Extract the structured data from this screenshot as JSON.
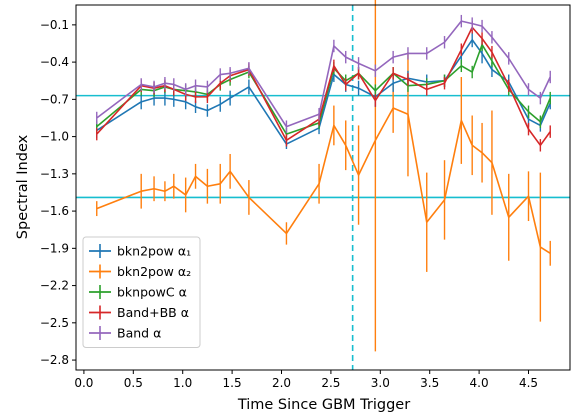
{
  "chart_data": {
    "type": "line",
    "xlabel": "Time Since GBM Trigger",
    "ylabel": "Spectral Index",
    "xlim": [
      -0.08,
      4.92
    ],
    "ylim": [
      -2.88,
      0.06
    ],
    "xticks": [
      0.0,
      0.5,
      1.0,
      1.5,
      2.0,
      2.5,
      3.0,
      3.5,
      4.0,
      4.5
    ],
    "xtick_labels": [
      "0.0",
      "0.5",
      "1.0",
      "1.5",
      "2.0",
      "2.5",
      "3.0",
      "3.5",
      "4.0",
      "4.5"
    ],
    "yticks": [
      -0.1,
      -0.4,
      -0.7,
      -1.0,
      -1.3,
      -1.6,
      -1.9,
      -2.2,
      -2.5,
      -2.8
    ],
    "ytick_labels": [
      "−0.1",
      "−0.4",
      "−0.7",
      "−1.0",
      "−1.3",
      "−1.6",
      "−1.9",
      "−2.2",
      "−2.5",
      "−2.8"
    ],
    "grid": false,
    "legend_position": "lower-left",
    "hlines": [
      {
        "y": -0.67,
        "color": "#17becf"
      },
      {
        "y": -1.49,
        "color": "#17becf"
      }
    ],
    "vlines": [
      {
        "x": 2.72,
        "color": "#17becf",
        "style": "dashed"
      }
    ],
    "x": [
      0.13,
      0.58,
      0.71,
      0.82,
      0.91,
      1.03,
      1.13,
      1.25,
      1.38,
      1.48,
      1.67,
      2.05,
      2.38,
      2.53,
      2.65,
      2.78,
      2.95,
      3.13,
      3.28,
      3.47,
      3.65,
      3.82,
      3.93,
      4.03,
      4.13,
      4.3,
      4.5,
      4.62,
      4.72
    ],
    "series": [
      {
        "name": "bkn2pow α₁",
        "color": "#1f77b4",
        "values": [
          -0.95,
          -0.72,
          -0.69,
          -0.69,
          -0.7,
          -0.72,
          -0.76,
          -0.79,
          -0.74,
          -0.69,
          -0.6,
          -1.06,
          -0.93,
          -0.5,
          -0.58,
          -0.61,
          -0.68,
          -0.57,
          -0.53,
          -0.56,
          -0.55,
          -0.35,
          -0.22,
          -0.33,
          -0.46,
          -0.56,
          -0.86,
          -0.91,
          -0.73
        ],
        "errors": [
          0.06,
          0.06,
          0.06,
          0.06,
          0.06,
          0.06,
          0.05,
          0.05,
          0.06,
          0.06,
          0.06,
          0.04,
          0.05,
          0.06,
          0.06,
          0.06,
          0.08,
          0.07,
          0.06,
          0.06,
          0.05,
          0.07,
          0.06,
          0.08,
          0.06,
          0.06,
          0.06,
          0.05,
          0.05
        ]
      },
      {
        "name": "bkn2pow α₂",
        "color": "#ff7f0e",
        "values": [
          -1.58,
          -1.44,
          -1.42,
          -1.44,
          -1.4,
          -1.47,
          -1.32,
          -1.4,
          -1.38,
          -1.28,
          -1.49,
          -1.78,
          -1.38,
          -0.91,
          -1.07,
          -1.31,
          -1.03,
          -0.77,
          -0.82,
          -1.69,
          -1.51,
          -0.87,
          -1.07,
          -1.13,
          -1.21,
          -1.65,
          -1.48,
          -1.89,
          -1.94
        ],
        "errors": [
          0.06,
          0.14,
          0.1,
          0.08,
          0.1,
          0.14,
          0.1,
          0.14,
          0.16,
          0.14,
          0.14,
          0.09,
          0.16,
          0.16,
          0.2,
          0.4,
          1.7,
          0.2,
          0.5,
          0.4,
          0.32,
          0.35,
          0.24,
          0.24,
          0.42,
          0.35,
          0.2,
          0.6,
          0.1
        ]
      },
      {
        "name": "bknpowC α",
        "color": "#2ca02c",
        "values": [
          -0.92,
          -0.62,
          -0.63,
          -0.6,
          -0.62,
          -0.63,
          -0.64,
          -0.66,
          -0.58,
          -0.54,
          -0.48,
          -0.98,
          -0.89,
          -0.45,
          -0.55,
          -0.49,
          -0.63,
          -0.49,
          -0.59,
          -0.58,
          -0.55,
          -0.43,
          -0.48,
          -0.26,
          -0.39,
          -0.62,
          -0.8,
          -0.88,
          -0.69
        ]
      },
      {
        "name": "Band+BB α",
        "color": "#d62728",
        "values": [
          -0.98,
          -0.59,
          -0.61,
          -0.59,
          -0.62,
          -0.66,
          -0.68,
          -0.68,
          -0.57,
          -0.51,
          -0.46,
          -1.03,
          -0.86,
          -0.43,
          -0.58,
          -0.49,
          -0.71,
          -0.49,
          -0.54,
          -0.62,
          -0.57,
          -0.3,
          -0.12,
          -0.21,
          -0.32,
          -0.59,
          -0.94,
          -1.07,
          -0.96
        ]
      },
      {
        "name": "Band α",
        "color": "#9467bd",
        "values": [
          -0.85,
          -0.58,
          -0.6,
          -0.57,
          -0.58,
          -0.62,
          -0.59,
          -0.6,
          -0.5,
          -0.49,
          -0.45,
          -0.92,
          -0.82,
          -0.27,
          -0.36,
          -0.41,
          -0.47,
          -0.36,
          -0.33,
          -0.33,
          -0.24,
          -0.07,
          -0.09,
          -0.11,
          -0.2,
          -0.37,
          -0.62,
          -0.69,
          -0.52
        ]
      }
    ]
  }
}
